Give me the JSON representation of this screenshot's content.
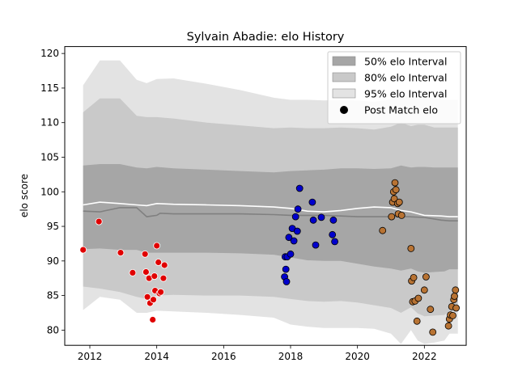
{
  "chart_data": {
    "type": "scatter",
    "title": "Sylvain Abadie: elo History",
    "xlabel": "",
    "ylabel": "elo score",
    "xlim": [
      2011.25,
      2023.25
    ],
    "ylim": [
      77.8,
      121.0
    ],
    "xticks": [
      2012,
      2014,
      2016,
      2018,
      2020,
      2022
    ],
    "yticks": [
      80,
      85,
      90,
      95,
      100,
      105,
      110,
      115,
      120
    ],
    "grid": false,
    "legend_position": "top-right",
    "legend": [
      {
        "label": "50% elo Interval",
        "kind": "band",
        "color": "#999999"
      },
      {
        "label": "80% elo Interval",
        "kind": "band",
        "color": "#b8b8b8"
      },
      {
        "label": "95% elo Interval",
        "kind": "band",
        "color": "#d9d9d9"
      },
      {
        "label": "Post Match elo",
        "kind": "marker",
        "color": "#000000"
      }
    ],
    "colors": {
      "band50": "#a6a6a6",
      "band80": "#c9c9c9",
      "band95": "#e3e3e3",
      "median_line": "#808080",
      "mean_line": "#ffffff",
      "group1": "#e00000",
      "group2": "#0000cc",
      "group3": "#b87333"
    },
    "bands": {
      "x": [
        2011.8,
        2012.3,
        2012.9,
        2013.4,
        2013.7,
        2014.0,
        2014.5,
        2015.5,
        2016.5,
        2017.5,
        2018.0,
        2018.5,
        2019.0,
        2019.5,
        2020.0,
        2020.5,
        2021.0,
        2021.3,
        2021.6,
        2021.8,
        2022.0,
        2022.3,
        2022.6,
        2022.75,
        2023.0
      ],
      "lower95": [
        82.9,
        84.8,
        84.4,
        82.5,
        82.5,
        82.8,
        82.7,
        82.5,
        82.2,
        81.8,
        80.8,
        80.5,
        80.3,
        80.3,
        80.3,
        80.2,
        79.5,
        78.0,
        80.0,
        78.5,
        78.0,
        78.2,
        78.5,
        79.5,
        79.5
      ],
      "lower80": [
        86.3,
        86.0,
        85.5,
        84.8,
        84.5,
        85.0,
        85.1,
        85.0,
        85.0,
        84.8,
        84.5,
        84.2,
        84.1,
        84.2,
        84.0,
        83.6,
        83.2,
        82.5,
        83.3,
        82.4,
        82.0,
        82.1,
        82.2,
        82.7,
        82.7
      ],
      "lower50": [
        91.7,
        91.8,
        91.6,
        91.6,
        91.2,
        91.2,
        91.2,
        91.2,
        91.1,
        90.9,
        90.5,
        90.1,
        90.0,
        90.0,
        89.6,
        89.2,
        88.9,
        88.6,
        88.9,
        88.5,
        88.3,
        88.4,
        88.5,
        88.8,
        88.8
      ],
      "upper50": [
        103.8,
        104.0,
        104.0,
        103.5,
        103.4,
        103.6,
        103.4,
        103.2,
        103.0,
        102.8,
        103.0,
        103.1,
        103.2,
        103.4,
        103.4,
        103.3,
        103.4,
        103.8,
        103.5,
        103.6,
        103.6,
        103.5,
        103.5,
        103.5,
        103.5
      ],
      "upper80": [
        111.5,
        113.5,
        113.5,
        111.0,
        110.8,
        110.8,
        110.6,
        110.0,
        109.6,
        109.2,
        109.3,
        109.2,
        109.2,
        109.3,
        109.2,
        109.0,
        109.4,
        110.0,
        109.5,
        109.7,
        109.7,
        109.3,
        109.3,
        109.3,
        109.3
      ],
      "upper95": [
        115.4,
        119.0,
        119.0,
        116.2,
        115.7,
        116.3,
        116.4,
        115.6,
        114.7,
        113.6,
        113.3,
        113.3,
        113.2,
        113.3,
        113.2,
        113.0,
        113.4,
        114.2,
        113.5,
        114.0,
        114.0,
        113.5,
        113.3,
        113.3,
        113.3
      ]
    },
    "median_line": {
      "x": [
        2011.8,
        2012.3,
        2012.9,
        2013.4,
        2013.7,
        2014.0,
        2014.1,
        2014.5,
        2015.5,
        2016.5,
        2017.5,
        2018.0,
        2018.5,
        2019.0,
        2019.5,
        2020.0,
        2020.5,
        2021.0,
        2021.5,
        2022.0,
        2022.5,
        2022.75,
        2023.0
      ],
      "y": [
        97.2,
        97.1,
        97.7,
        97.7,
        96.4,
        96.6,
        96.9,
        96.8,
        96.8,
        96.8,
        96.7,
        96.6,
        96.6,
        96.6,
        96.5,
        96.4,
        96.4,
        96.4,
        96.4,
        96.3,
        95.9,
        95.8,
        95.8
      ]
    },
    "mean_line": {
      "x": [
        2011.8,
        2012.3,
        2012.9,
        2013.4,
        2013.7,
        2014.0,
        2014.5,
        2015.5,
        2016.5,
        2017.5,
        2018.0,
        2018.5,
        2019.0,
        2019.5,
        2020.0,
        2020.5,
        2021.0,
        2021.3,
        2021.6,
        2022.0,
        2022.5,
        2022.75,
        2023.0
      ],
      "y": [
        98.1,
        98.5,
        98.3,
        98.1,
        98.0,
        98.3,
        98.2,
        98.1,
        98.0,
        97.8,
        97.6,
        97.2,
        97.1,
        97.3,
        97.6,
        97.8,
        97.7,
        97.3,
        97.1,
        96.6,
        96.5,
        96.4,
        96.4
      ]
    },
    "series": [
      {
        "name": "",
        "color_key": "group1",
        "edge": "#ffffff",
        "x": [
          2011.8,
          2012.27,
          2012.92,
          2013.28,
          2013.65,
          2013.68,
          2013.72,
          2013.77,
          2013.8,
          2013.88,
          2013.9,
          2013.93,
          2013.95,
          2014.0,
          2014.05,
          2014.08,
          2014.12,
          2014.2,
          2014.23
        ],
        "y": [
          91.6,
          95.7,
          91.2,
          88.3,
          91.0,
          88.4,
          84.8,
          87.5,
          83.9,
          81.5,
          84.4,
          87.8,
          85.7,
          92.2,
          89.8,
          85.3,
          85.5,
          87.5,
          89.4
        ]
      },
      {
        "name": "",
        "color_key": "group2",
        "edge": "#000000",
        "x": [
          2017.82,
          2017.84,
          2017.86,
          2017.88,
          2017.9,
          2017.95,
          2018.0,
          2018.05,
          2018.1,
          2018.15,
          2018.2,
          2018.22,
          2018.65,
          2018.68,
          2018.75,
          2018.92,
          2019.25,
          2019.28,
          2019.32
        ],
        "y": [
          87.7,
          90.6,
          88.8,
          87.0,
          90.6,
          93.4,
          91.0,
          94.7,
          92.9,
          96.4,
          94.3,
          97.5,
          98.5,
          95.9,
          92.3,
          96.3,
          93.8,
          95.9,
          92.8
        ],
        "y_extra": [
          100.5
        ]
      },
      {
        "name": "",
        "color_key": "group3",
        "edge": "#000000",
        "x": [
          2020.75,
          2021.02,
          2021.05,
          2021.08,
          2021.1,
          2021.12,
          2021.15,
          2021.2,
          2021.22,
          2021.25,
          2021.32,
          2021.6,
          2021.62,
          2021.65,
          2021.68,
          2021.72,
          2021.78,
          2021.82,
          2022.0,
          2022.05,
          2022.18,
          2022.25,
          2022.72,
          2022.75,
          2022.78,
          2022.82,
          2022.85,
          2022.88,
          2022.9,
          2022.93,
          2022.95
        ],
        "y": [
          94.4,
          96.4,
          98.5,
          100.0,
          99.0,
          101.3,
          100.3,
          98.3,
          96.8,
          98.5,
          96.6,
          91.8,
          87.1,
          84.1,
          87.6,
          84.2,
          81.3,
          84.6,
          85.8,
          87.7,
          83.0,
          79.7,
          80.6,
          81.6,
          82.2,
          83.4,
          82.1,
          84.4,
          84.9,
          85.8,
          83.2
        ]
      }
    ]
  }
}
